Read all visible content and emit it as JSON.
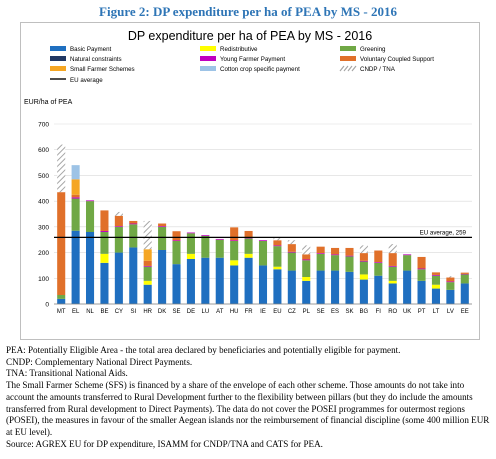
{
  "figure_title": "Figure 2: DP expenditure per ha of PEA by MS - 2016",
  "notes": [
    "PEA: Potentially Eligible Area - the total area declared by beneficiaries and potentially eligible for payment.",
    "CNDP: Complementary National Direct Payments.",
    "TNA: Transitional National Aids.",
    "The Small Farmer Scheme (SFS) is financed by a share of the envelope of each other scheme. Those amounts do not take into account the amounts transferred to Rural Development further to the flexibility between pillars (but they do include the amounts transferred from Rural development to Direct Payments). The data do not cover the POSEI programmes for outermost regions (POSEI), the measures in favour of the smaller Aegean islands nor the reimbursement of financial discipline (some 400 million EUR at EU level).",
    "Source: AGREX EU for DP expenditure, ISAMM for CNDP/TNA and CATS for PEA."
  ],
  "colors": {
    "Basic Payment": "#1F6FC0",
    "Redistributive": "#FFFF00",
    "Greening": "#70A845",
    "Natural constraints": "#203864",
    "Young Farmer Payment": "#C000C0",
    "Voluntary Coupled Support": "#E0702A",
    "Small Farmer Schemes": "#F5A623",
    "Cotton crop specific payment": "#9DC3E6",
    "CNDP / TNA": "#A6A6A6",
    "EU average": "#000000",
    "bar_base": "#5B9BD5"
  },
  "chart_data": {
    "type": "bar",
    "stacked": true,
    "title": "DP expenditure per ha of PEA by MS - 2016",
    "ylabel": "EUR/ha of PEA",
    "ylim": [
      0,
      700
    ],
    "yticks": [
      0,
      100,
      200,
      300,
      400,
      500,
      600,
      700
    ],
    "grid": true,
    "legend_position": "top",
    "categories": [
      "MT",
      "EL",
      "NL",
      "BE",
      "CY",
      "SI",
      "HR",
      "DK",
      "SE",
      "DE",
      "LU",
      "AT",
      "HU",
      "FR",
      "IE",
      "EU",
      "CZ",
      "PL",
      "SE",
      "ES",
      "SK",
      "BG",
      "FI",
      "RO",
      "UK",
      "PT",
      "LT",
      "LV",
      "EE"
    ],
    "series": [
      {
        "name": "Basic Payment",
        "values": [
          20,
          285,
          280,
          160,
          200,
          220,
          75,
          210,
          155,
          175,
          180,
          180,
          150,
          180,
          150,
          135,
          130,
          90,
          130,
          130,
          125,
          95,
          110,
          80,
          130,
          90,
          60,
          55,
          80
        ]
      },
      {
        "name": "Redistributive",
        "values": [
          0,
          0,
          0,
          35,
          0,
          0,
          15,
          0,
          0,
          20,
          0,
          0,
          20,
          15,
          0,
          10,
          0,
          15,
          0,
          0,
          0,
          20,
          0,
          10,
          0,
          0,
          15,
          0,
          0
        ]
      },
      {
        "name": "Greening",
        "values": [
          15,
          125,
          120,
          85,
          100,
          90,
          55,
          90,
          90,
          80,
          85,
          70,
          75,
          60,
          95,
          80,
          70,
          65,
          65,
          60,
          60,
          50,
          50,
          55,
          60,
          45,
          35,
          30,
          35
        ]
      },
      {
        "name": "Natural constraints",
        "values": [
          0,
          0,
          0,
          0,
          0,
          0,
          0,
          0,
          0,
          0,
          0,
          0,
          0,
          0,
          0,
          0,
          0,
          0,
          0,
          0,
          0,
          0,
          0,
          0,
          0,
          0,
          0,
          0,
          0
        ]
      },
      {
        "name": "Young Farmer Payment",
        "values": [
          0,
          5,
          3,
          4,
          3,
          3,
          3,
          3,
          3,
          3,
          3,
          3,
          3,
          4,
          3,
          3,
          3,
          3,
          3,
          3,
          3,
          3,
          3,
          3,
          3,
          3,
          3,
          3,
          2
        ]
      },
      {
        "name": "Voluntary Coupled Support",
        "values": [
          400,
          10,
          0,
          80,
          40,
          10,
          20,
          10,
          35,
          0,
          0,
          0,
          50,
          25,
          0,
          20,
          30,
          20,
          25,
          25,
          30,
          30,
          45,
          50,
          0,
          45,
          10,
          15,
          5
        ]
      },
      {
        "name": "Small Farmer Schemes",
        "values": [
          0,
          60,
          0,
          0,
          0,
          0,
          45,
          0,
          0,
          0,
          0,
          0,
          0,
          0,
          0,
          0,
          0,
          0,
          0,
          0,
          0,
          0,
          0,
          0,
          0,
          0,
          0,
          0,
          0
        ]
      },
      {
        "name": "Cotton crop specific payment",
        "values": [
          0,
          55,
          0,
          0,
          0,
          0,
          0,
          0,
          0,
          0,
          0,
          0,
          0,
          0,
          0,
          0,
          0,
          0,
          0,
          0,
          0,
          0,
          0,
          0,
          0,
          0,
          0,
          0,
          0
        ]
      },
      {
        "name": "CNDP / TNA",
        "values": [
          185,
          0,
          0,
          0,
          15,
          0,
          110,
          0,
          0,
          0,
          0,
          0,
          0,
          0,
          0,
          8,
          15,
          35,
          0,
          0,
          0,
          30,
          0,
          35,
          0,
          0,
          0,
          5,
          0
        ]
      }
    ],
    "reference_line": {
      "name": "EU average",
      "value": 259,
      "label": "EU average, 259"
    }
  }
}
